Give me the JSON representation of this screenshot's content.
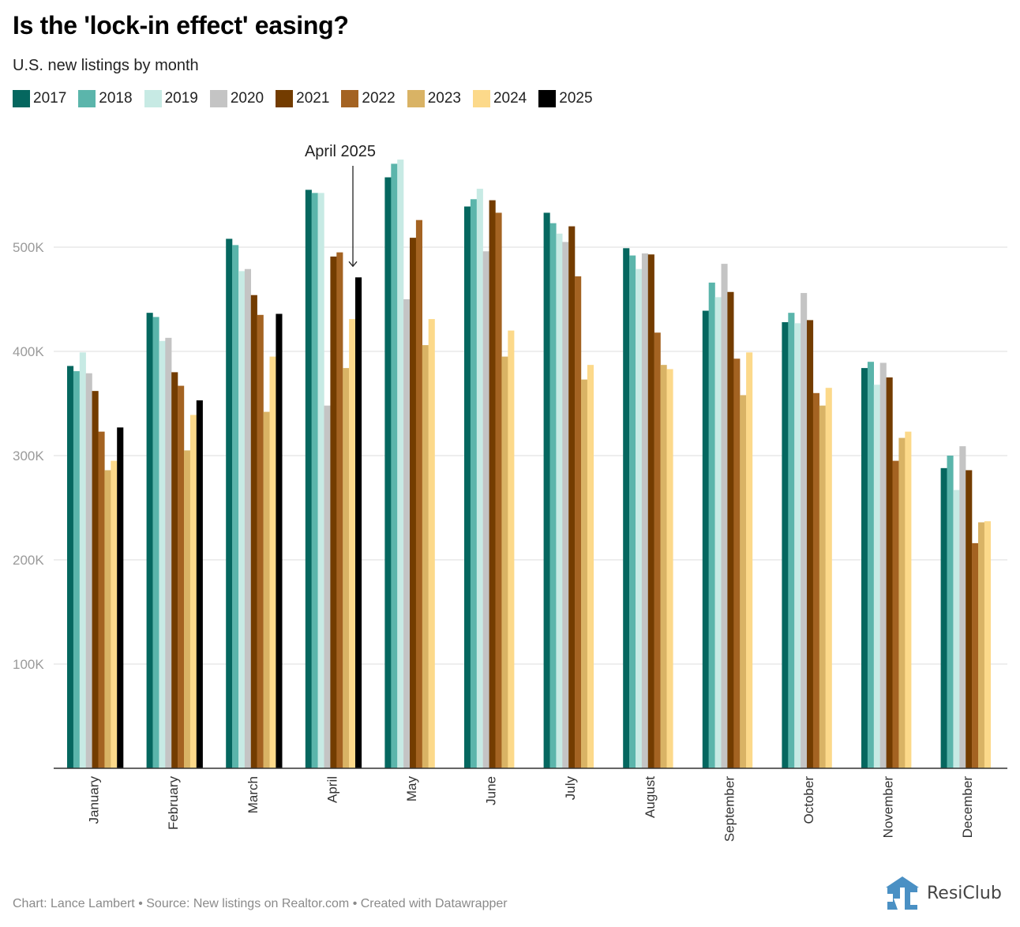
{
  "header": {
    "title": "Is the 'lock-in effect' easing?",
    "subtitle": "U.S. new listings by month"
  },
  "footer": {
    "credit": "Chart: Lance Lambert • Source: New listings on Realtor.com • Created with Datawrapper",
    "logo_text": "ResiClub",
    "logo_color": "#4a90c4"
  },
  "chart_data": {
    "type": "bar",
    "title": "Is the 'lock-in effect' easing?",
    "subtitle": "U.S. new listings by month",
    "xlabel": "",
    "ylabel": "",
    "ylim": [
      0,
      600000
    ],
    "yticks": [
      100000,
      200000,
      300000,
      400000,
      500000
    ],
    "ytick_labels": [
      "100K",
      "200K",
      "300K",
      "400K",
      "500K"
    ],
    "grid": true,
    "legend_position": "top-left",
    "categories": [
      "January",
      "February",
      "March",
      "April",
      "May",
      "June",
      "July",
      "August",
      "September",
      "October",
      "November",
      "December"
    ],
    "annotation": {
      "text": "April 2025",
      "category": "April",
      "series": "2025"
    },
    "series": [
      {
        "name": "2017",
        "color": "#05675f",
        "values": [
          386000,
          437000,
          508000,
          555000,
          567000,
          539000,
          533000,
          499000,
          439000,
          428000,
          384000,
          288000
        ]
      },
      {
        "name": "2018",
        "color": "#5bb5ab",
        "values": [
          381000,
          433000,
          502000,
          552000,
          580000,
          546000,
          523000,
          492000,
          466000,
          437000,
          390000,
          300000
        ]
      },
      {
        "name": "2019",
        "color": "#c7eae4",
        "values": [
          399000,
          410000,
          477000,
          552000,
          584000,
          556000,
          513000,
          479000,
          452000,
          427000,
          368000,
          267000
        ]
      },
      {
        "name": "2020",
        "color": "#c4c4c4",
        "values": [
          379000,
          413000,
          479000,
          348000,
          450000,
          496000,
          505000,
          494000,
          484000,
          456000,
          389000,
          309000
        ]
      },
      {
        "name": "2021",
        "color": "#733c00",
        "values": [
          362000,
          380000,
          454000,
          491000,
          509000,
          545000,
          520000,
          493000,
          457000,
          430000,
          375000,
          286000
        ]
      },
      {
        "name": "2022",
        "color": "#a46322",
        "values": [
          323000,
          367000,
          435000,
          495000,
          526000,
          533000,
          472000,
          418000,
          393000,
          360000,
          295000,
          216000
        ]
      },
      {
        "name": "2023",
        "color": "#d9b365",
        "values": [
          286000,
          305000,
          342000,
          384000,
          406000,
          395000,
          373000,
          387000,
          358000,
          348000,
          317000,
          236000
        ]
      },
      {
        "name": "2024",
        "color": "#fcd98a",
        "values": [
          295000,
          339000,
          395000,
          431000,
          431000,
          420000,
          387000,
          383000,
          399000,
          365000,
          323000,
          237000
        ]
      },
      {
        "name": "2025",
        "color": "#000000",
        "values": [
          327000,
          353000,
          436000,
          471000,
          null,
          null,
          null,
          null,
          null,
          null,
          null,
          null
        ]
      }
    ]
  }
}
